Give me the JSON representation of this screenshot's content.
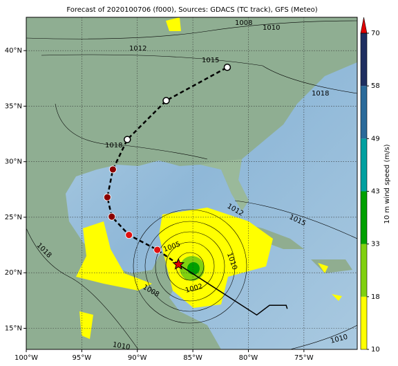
{
  "title": "Forecast of 2020100706 (f000), Sources: GDACS (TC track), GFS (Meteo)",
  "map": {
    "xlim": [
      -100,
      -70.2
    ],
    "ylim": [
      13.1,
      43
    ],
    "xticks": [
      {
        "value": -100,
        "label": "100°W"
      },
      {
        "value": -95,
        "label": "95°W"
      },
      {
        "value": -90,
        "label": "90°W"
      },
      {
        "value": -85,
        "label": "85°W"
      },
      {
        "value": -80,
        "label": "80°W"
      },
      {
        "value": -75,
        "label": "75°W"
      }
    ],
    "yticks": [
      {
        "value": 15,
        "label": "15°N"
      },
      {
        "value": 20,
        "label": "20°N"
      },
      {
        "value": 25,
        "label": "25°N"
      },
      {
        "value": 30,
        "label": "30°N"
      },
      {
        "value": 35,
        "label": "35°N"
      },
      {
        "value": 40,
        "label": "40°N"
      }
    ],
    "grid": true,
    "track": {
      "past": [
        [
          -86.3,
          20.75
        ],
        [
          -79.25,
          16.2
        ],
        [
          -78.1,
          17.07
        ],
        [
          -76.6,
          17.07
        ],
        [
          -76.5,
          16.76
        ]
      ],
      "forecast": [
        [
          -86.3,
          20.75
        ],
        [
          -88.2,
          22.06
        ],
        [
          -90.75,
          23.4
        ],
        [
          -92.3,
          25.05
        ],
        [
          -92.7,
          26.8
        ],
        [
          -92.2,
          29.3
        ],
        [
          -90.9,
          32.0
        ],
        [
          -87.4,
          35.5
        ],
        [
          -81.9,
          38.5
        ]
      ]
    },
    "contour_labels": [
      "1008",
      "1010",
      "1012",
      "1015",
      "1018",
      "1018",
      "1015",
      "1012",
      "1005",
      "1010",
      "1002",
      "1008",
      "1018",
      "1010",
      "1010"
    ]
  },
  "colorbar": {
    "label": "10 m wind speed (m/s)",
    "ticks": [
      10,
      18,
      33,
      43,
      49,
      58,
      70
    ],
    "colors": [
      "#ffff00",
      "#80d010",
      "#00a000",
      "#00a0a0",
      "#2a6a9a",
      "#1e2e60"
    ],
    "extend_color": "#e00000"
  }
}
